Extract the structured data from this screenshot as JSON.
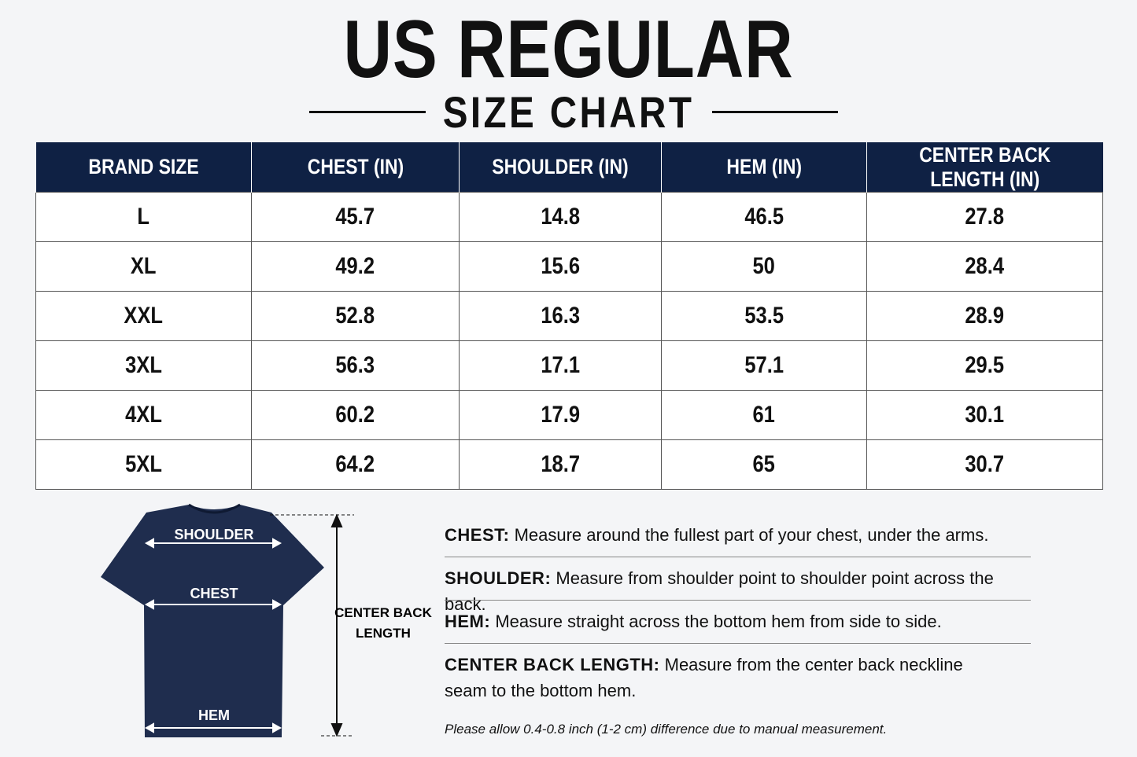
{
  "header": {
    "title": "US REGULAR",
    "subtitle": "SIZE CHART"
  },
  "table": {
    "columns": [
      "BRAND SIZE",
      "CHEST (IN)",
      "SHOULDER (IN)",
      "HEM (IN)",
      "CENTER BACK LENGTH (IN)"
    ],
    "rows": [
      [
        "L",
        "45.7",
        "14.8",
        "46.5",
        "27.8"
      ],
      [
        "XL",
        "49.2",
        "15.6",
        "50",
        "28.4"
      ],
      [
        "XXL",
        "52.8",
        "16.3",
        "53.5",
        "28.9"
      ],
      [
        "3XL",
        "56.3",
        "17.1",
        "57.1",
        "29.5"
      ],
      [
        "4XL",
        "60.2",
        "17.9",
        "61",
        "30.1"
      ],
      [
        "5XL",
        "64.2",
        "18.7",
        "65",
        "30.7"
      ]
    ]
  },
  "diagram": {
    "shoulder": "SHOULDER",
    "chest": "CHEST",
    "hem": "HEM",
    "length": [
      "CENTER BACK",
      "LENGTH"
    ]
  },
  "definitions": [
    {
      "term": "CHEST:",
      "text": "Measure around the fullest part of your chest, under the arms."
    },
    {
      "term": "SHOULDER:",
      "text": "Measure from shoulder point to shoulder point across the back."
    },
    {
      "term": "HEM:",
      "text": "Measure straight across the bottom hem from side to side."
    },
    {
      "term": "CENTER BACK LENGTH:",
      "text": "Measure from the center back neckline seam to the bottom hem."
    }
  ],
  "note": "Please allow 0.4-0.8 inch (1-2 cm) difference due to manual measurement."
}
